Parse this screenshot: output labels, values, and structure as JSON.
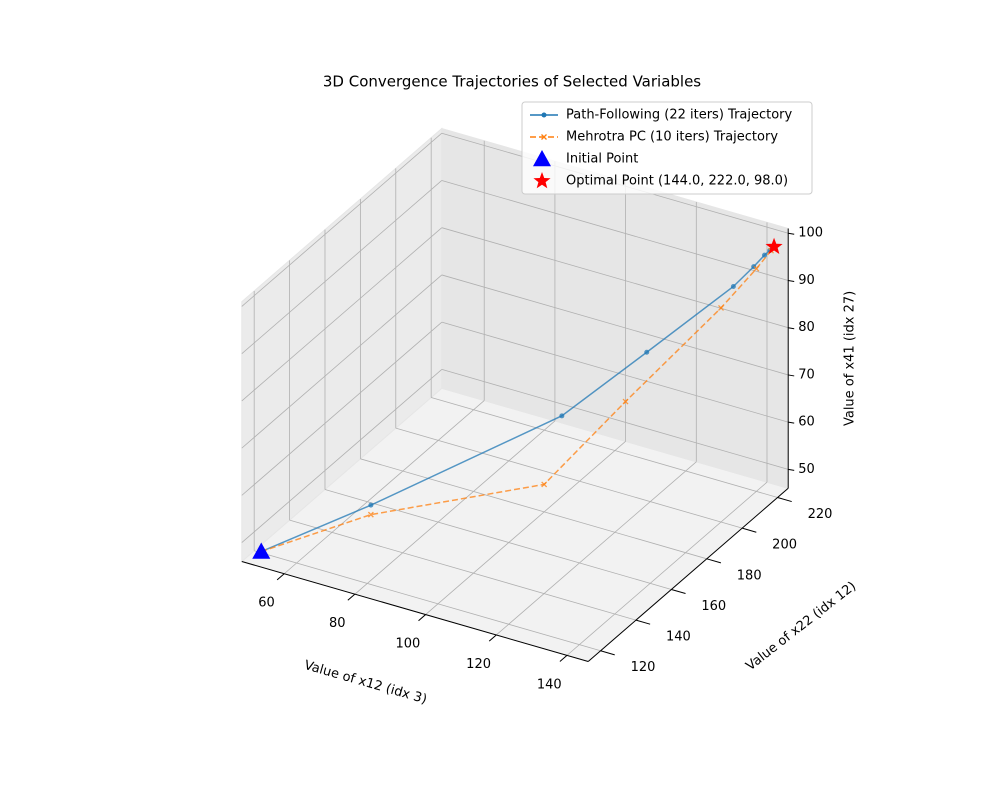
{
  "chart_data": {
    "type": "line3d",
    "title": "3D Convergence Trajectories of Selected Variables",
    "xlabel": "Value of x12 (idx 3)",
    "ylabel": "Value of x22 (idx 12)",
    "zlabel": "Value of x41 (idx 27)",
    "xlim": [
      48,
      146
    ],
    "ylim": [
      113,
      226
    ],
    "zlim": [
      46,
      101
    ],
    "xticks": [
      60,
      80,
      100,
      120,
      140
    ],
    "yticks": [
      120,
      140,
      160,
      180,
      200,
      220
    ],
    "zticks": [
      50,
      60,
      70,
      80,
      90,
      100
    ],
    "grid": true,
    "legend": "upper right",
    "series": [
      {
        "name": "Path-Following (22 iters) Trajectory",
        "color": "#1f77b4",
        "linestyle": "solid",
        "marker": "o",
        "x": [
          52,
          72,
          108,
          122,
          137,
          140.5,
          142.3,
          143.2,
          143.7,
          144
        ],
        "y": [
          116,
          138,
          174,
          194,
          213,
          217.5,
          220,
          221.2,
          221.7,
          222
        ],
        "z": [
          48,
          55,
          70,
          80,
          91,
          94.5,
          96.5,
          97.3,
          97.7,
          98
        ]
      },
      {
        "name": "Mehrotra PC (10 iters) Trajectory",
        "color": "#ff7f0e",
        "linestyle": "dashed",
        "marker": "x",
        "x": [
          52,
          72,
          106,
          118,
          135,
          141,
          143.5,
          144
        ],
        "y": [
          116,
          138,
          168,
          190,
          210,
          218,
          221.3,
          222
        ],
        "z": [
          48,
          53,
          57,
          70,
          87,
          94,
          97.3,
          98
        ]
      }
    ],
    "points": [
      {
        "name": "Initial Point",
        "color": "#0000ff",
        "marker": "triangle",
        "x": 52,
        "y": 116,
        "z": 48
      },
      {
        "name": "Optimal Point (144.0, 222.0, 98.0)",
        "color": "#ff0000",
        "marker": "star",
        "x": 144,
        "y": 222,
        "z": 98
      }
    ]
  }
}
